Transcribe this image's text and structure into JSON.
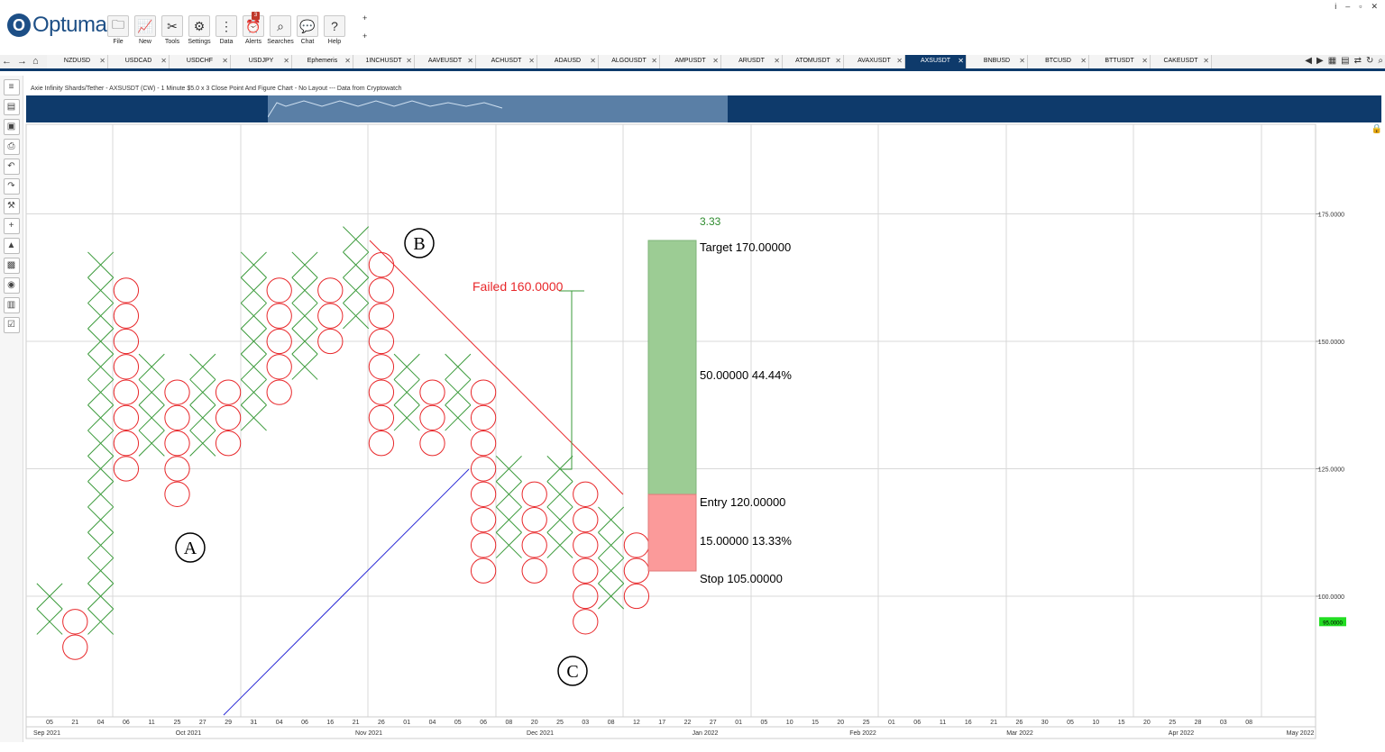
{
  "app": {
    "brand": "Optuma"
  },
  "toolbar": [
    {
      "label": "File",
      "icon": "folder-icon"
    },
    {
      "label": "New",
      "icon": "new-chart-icon"
    },
    {
      "label": "Tools",
      "icon": "tools-icon"
    },
    {
      "label": "Settings",
      "icon": "settings-icon"
    },
    {
      "label": "Data",
      "icon": "data-icon"
    },
    {
      "label": "Alerts",
      "icon": "alarm-clock-icon"
    },
    {
      "label": "Searches",
      "icon": "search-icon"
    },
    {
      "label": "Chat",
      "icon": "chat-icon"
    },
    {
      "label": "Help",
      "icon": "help-icon"
    }
  ],
  "alerts_count": "3",
  "tabs": [
    "NZDUSD",
    "USDCAD",
    "USDCHF",
    "USDJPY",
    "Ephemeris",
    "1INCHUSDT",
    "AAVEUSDT",
    "ACHUSDT",
    "ADAUSD",
    "ALGOUSDT",
    "AMPUSDT",
    "ARUSDT",
    "ATOMUSDT",
    "AVAXUSDT",
    "AXSUSDT",
    "BNBUSD",
    "BTCUSD",
    "BTTUSDT",
    "CAKEUSDT"
  ],
  "active_tab": "AXSUSDT",
  "chart_title": "Axie Infinity Shards/Tether - AXSUSDT (CW) - 1 Minute $5.0 x 3 Close Point And Figure Chart - No Layout --- Data from Cryptowatch",
  "chart_data": {
    "type": "point-and-figure",
    "box_size": 5,
    "y_axis_labels": [
      "175.0000",
      "150.0000",
      "125.0000",
      "100.0000"
    ],
    "current_price": "95.0000",
    "columns": [
      {
        "type": "X",
        "from": 95,
        "to": 100
      },
      {
        "type": "O",
        "from": 90,
        "to": 95
      },
      {
        "type": "X",
        "from": 95,
        "to": 165
      },
      {
        "type": "O",
        "from": 125,
        "to": 160
      },
      {
        "type": "X",
        "from": 130,
        "to": 145
      },
      {
        "type": "O",
        "from": 120,
        "to": 140
      },
      {
        "type": "X",
        "from": 130,
        "to": 145
      },
      {
        "type": "O",
        "from": 130,
        "to": 140
      },
      {
        "type": "X",
        "from": 135,
        "to": 165
      },
      {
        "type": "O",
        "from": 140,
        "to": 160
      },
      {
        "type": "X",
        "from": 145,
        "to": 165
      },
      {
        "type": "O",
        "from": 150,
        "to": 160
      },
      {
        "type": "X",
        "from": 155,
        "to": 170
      },
      {
        "type": "O",
        "from": 130,
        "to": 165
      },
      {
        "type": "X",
        "from": 135,
        "to": 145
      },
      {
        "type": "O",
        "from": 130,
        "to": 140
      },
      {
        "type": "X",
        "from": 135,
        "to": 145
      },
      {
        "type": "O",
        "from": 105,
        "to": 140
      },
      {
        "type": "X",
        "from": 110,
        "to": 125
      },
      {
        "type": "O",
        "from": 105,
        "to": 120
      },
      {
        "type": "X",
        "from": 110,
        "to": 125
      },
      {
        "type": "O",
        "from": 95,
        "to": 120
      },
      {
        "type": "X",
        "from": 100,
        "to": 115
      },
      {
        "type": "O",
        "from": 100,
        "to": 110
      }
    ],
    "annotations": {
      "point_a": "A",
      "point_b": "B",
      "point_c": "C",
      "failed": "Failed 160.0000",
      "ratio": "3.33",
      "target": "Target   170.00000",
      "reward": "50.00000   44.44%",
      "entry": "Entry   120.00000",
      "risk": "15.00000   13.33%",
      "stop": "Stop   105.00000"
    },
    "x_ticks": [
      "05",
      "21",
      "04",
      "06",
      "11",
      "25",
      "27",
      "29",
      "31",
      "04",
      "06",
      "16",
      "21",
      "26",
      "01",
      "04",
      "05",
      "06",
      "08",
      "20",
      "25",
      "03",
      "08",
      "12",
      "17",
      "22",
      "27",
      "01",
      "05",
      "10",
      "15",
      "20",
      "25",
      "01",
      "06",
      "11",
      "16",
      "21",
      "26",
      "30",
      "05",
      "10",
      "15",
      "20",
      "25",
      "28",
      "03",
      "08"
    ],
    "x_months": [
      "Sep 2021",
      "Oct 2021",
      "Nov 2021",
      "Dec 2021",
      "Jan 2022",
      "Feb 2022",
      "Mar 2022",
      "Apr 2022",
      "May 2022"
    ]
  },
  "colors": {
    "x": "#3a9a3a",
    "o": "#e8272a",
    "reward": "#9ccc94",
    "risk": "#fb9a9a",
    "nav": "#0e3a6b",
    "price_tag": "#22dd22"
  }
}
